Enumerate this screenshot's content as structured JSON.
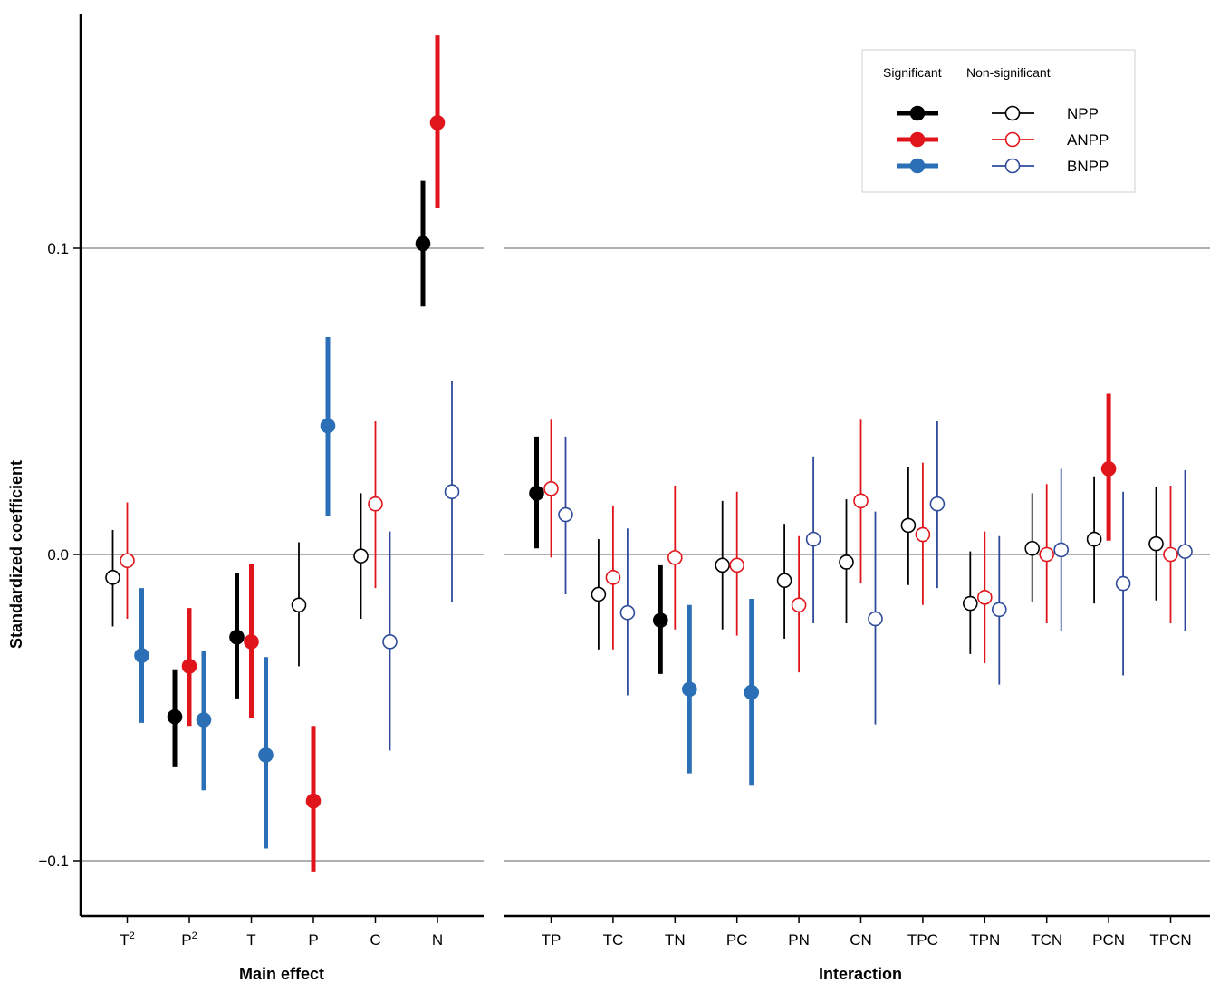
{
  "chart_data": {
    "type": "scatter",
    "ylabel": "Standardized coefficient",
    "ylim": [
      -0.118,
      0.178
    ],
    "yticks": [
      {
        "value": -0.1,
        "label": "−0.1"
      },
      {
        "value": 0.0,
        "label": "0.0"
      },
      {
        "value": 0.1,
        "label": "0.1"
      }
    ],
    "grid": "horizontal lines at ticks",
    "legend": {
      "placement": "top-right",
      "sig_header": "Significant",
      "nonsig_header": "Non-significant"
    },
    "colors": {
      "NPP": "#000000",
      "ANPP": "#e0151b",
      "BNPP": "#2b6fb6",
      "BNPP_nonsig": "#2e4a9a"
    },
    "series": [
      {
        "name": "NPP"
      },
      {
        "name": "ANPP"
      },
      {
        "name": "BNPP"
      }
    ],
    "panels": [
      {
        "xlabel": "Main effect",
        "categories": [
          {
            "label": "T",
            "sup": "2"
          },
          {
            "label": "P",
            "sup": "2"
          },
          {
            "label": "T",
            "sup": ""
          },
          {
            "label": "P",
            "sup": ""
          },
          {
            "label": "C",
            "sup": ""
          },
          {
            "label": "N",
            "sup": ""
          }
        ],
        "points": [
          [
            {
              "est": -0.0075,
              "lo": -0.0235,
              "hi": 0.008,
              "sig": false
            },
            {
              "est": -0.002,
              "lo": -0.021,
              "hi": 0.017,
              "sig": false
            },
            {
              "est": -0.033,
              "lo": -0.055,
              "hi": -0.011,
              "sig": true
            }
          ],
          [
            {
              "est": -0.053,
              "lo": -0.0695,
              "hi": -0.0375,
              "sig": true
            },
            {
              "est": -0.0365,
              "lo": -0.056,
              "hi": -0.0175,
              "sig": true
            },
            {
              "est": -0.054,
              "lo": -0.077,
              "hi": -0.0315,
              "sig": true
            }
          ],
          [
            {
              "est": -0.027,
              "lo": -0.047,
              "hi": -0.006,
              "sig": true
            },
            {
              "est": -0.0285,
              "lo": -0.0535,
              "hi": -0.003,
              "sig": true
            },
            {
              "est": -0.0655,
              "lo": -0.096,
              "hi": -0.0335,
              "sig": true
            }
          ],
          [
            {
              "est": -0.0165,
              "lo": -0.0365,
              "hi": 0.004,
              "sig": false
            },
            {
              "est": -0.0805,
              "lo": -0.1035,
              "hi": -0.056,
              "sig": true
            },
            {
              "est": 0.042,
              "lo": 0.0125,
              "hi": 0.071,
              "sig": true
            }
          ],
          [
            {
              "est": -0.0005,
              "lo": -0.021,
              "hi": 0.02,
              "sig": false
            },
            {
              "est": 0.0165,
              "lo": -0.011,
              "hi": 0.0435,
              "sig": false
            },
            {
              "est": -0.0285,
              "lo": -0.064,
              "hi": 0.0075,
              "sig": false
            }
          ],
          [
            {
              "est": 0.1015,
              "lo": 0.081,
              "hi": 0.122,
              "sig": true
            },
            {
              "est": 0.141,
              "lo": 0.113,
              "hi": 0.1695,
              "sig": true
            },
            {
              "est": 0.0205,
              "lo": -0.0155,
              "hi": 0.0565,
              "sig": false
            }
          ]
        ]
      },
      {
        "xlabel": "Interaction",
        "categories": [
          {
            "label": "TP",
            "sup": ""
          },
          {
            "label": "TC",
            "sup": ""
          },
          {
            "label": "TN",
            "sup": ""
          },
          {
            "label": "PC",
            "sup": ""
          },
          {
            "label": "PN",
            "sup": ""
          },
          {
            "label": "CN",
            "sup": ""
          },
          {
            "label": "TPC",
            "sup": ""
          },
          {
            "label": "TPN",
            "sup": ""
          },
          {
            "label": "TCN",
            "sup": ""
          },
          {
            "label": "PCN",
            "sup": ""
          },
          {
            "label": "TPCN",
            "sup": ""
          }
        ],
        "points": [
          [
            {
              "est": 0.02,
              "lo": 0.002,
              "hi": 0.0385,
              "sig": true
            },
            {
              "est": 0.0215,
              "lo": -0.001,
              "hi": 0.044,
              "sig": false
            },
            {
              "est": 0.013,
              "lo": -0.013,
              "hi": 0.0385,
              "sig": false
            }
          ],
          [
            {
              "est": -0.013,
              "lo": -0.031,
              "hi": 0.005,
              "sig": false
            },
            {
              "est": -0.0075,
              "lo": -0.031,
              "hi": 0.016,
              "sig": false
            },
            {
              "est": -0.019,
              "lo": -0.046,
              "hi": 0.0085,
              "sig": false
            }
          ],
          [
            {
              "est": -0.0215,
              "lo": -0.039,
              "hi": -0.0035,
              "sig": true
            },
            {
              "est": -0.001,
              "lo": -0.0245,
              "hi": 0.0225,
              "sig": false
            },
            {
              "est": -0.044,
              "lo": -0.0715,
              "hi": -0.0165,
              "sig": true
            }
          ],
          [
            {
              "est": -0.0035,
              "lo": -0.0245,
              "hi": 0.0175,
              "sig": false
            },
            {
              "est": -0.0035,
              "lo": -0.0265,
              "hi": 0.0205,
              "sig": false
            },
            {
              "est": -0.045,
              "lo": -0.0755,
              "hi": -0.0145,
              "sig": true
            }
          ],
          [
            {
              "est": -0.0085,
              "lo": -0.0275,
              "hi": 0.01,
              "sig": false
            },
            {
              "est": -0.0165,
              "lo": -0.0385,
              "hi": 0.006,
              "sig": false
            },
            {
              "est": 0.005,
              "lo": -0.0225,
              "hi": 0.032,
              "sig": false
            }
          ],
          [
            {
              "est": -0.0025,
              "lo": -0.0225,
              "hi": 0.018,
              "sig": false
            },
            {
              "est": 0.0175,
              "lo": -0.0095,
              "hi": 0.044,
              "sig": false
            },
            {
              "est": -0.021,
              "lo": -0.0555,
              "hi": 0.014,
              "sig": false
            }
          ],
          [
            {
              "est": 0.0095,
              "lo": -0.01,
              "hi": 0.0285,
              "sig": false
            },
            {
              "est": 0.0065,
              "lo": -0.0165,
              "hi": 0.03,
              "sig": false
            },
            {
              "est": 0.0165,
              "lo": -0.011,
              "hi": 0.0435,
              "sig": false
            }
          ],
          [
            {
              "est": -0.016,
              "lo": -0.0325,
              "hi": 0.001,
              "sig": false
            },
            {
              "est": -0.014,
              "lo": -0.0355,
              "hi": 0.0075,
              "sig": false
            },
            {
              "est": -0.018,
              "lo": -0.0425,
              "hi": 0.006,
              "sig": false
            }
          ],
          [
            {
              "est": 0.002,
              "lo": -0.0155,
              "hi": 0.02,
              "sig": false
            },
            {
              "est": 0.0,
              "lo": -0.0225,
              "hi": 0.023,
              "sig": false
            },
            {
              "est": 0.0015,
              "lo": -0.025,
              "hi": 0.028,
              "sig": false
            }
          ],
          [
            {
              "est": 0.005,
              "lo": -0.016,
              "hi": 0.0255,
              "sig": false
            },
            {
              "est": 0.028,
              "lo": 0.0045,
              "hi": 0.0525,
              "sig": true
            },
            {
              "est": -0.0095,
              "lo": -0.0395,
              "hi": 0.0205,
              "sig": false
            }
          ],
          [
            {
              "est": 0.0035,
              "lo": -0.015,
              "hi": 0.022,
              "sig": false
            },
            {
              "est": 0.0,
              "lo": -0.0225,
              "hi": 0.0225,
              "sig": false
            },
            {
              "est": 0.001,
              "lo": -0.025,
              "hi": 0.0275,
              "sig": false
            }
          ]
        ]
      }
    ]
  }
}
